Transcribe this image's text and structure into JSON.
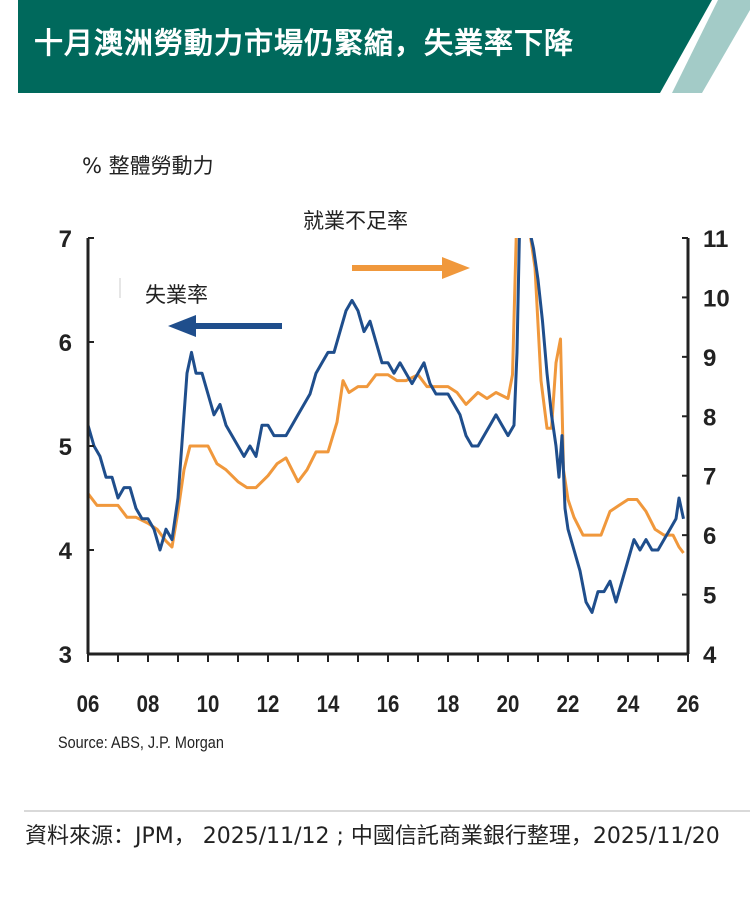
{
  "header": {
    "title": "十月澳洲勞動力市場仍緊縮，失業率下降",
    "color": "#00695c",
    "stripe_color": "#a3cbc7"
  },
  "chart_data": {
    "type": "line",
    "ylabel": "% 整體勞動力",
    "source_note": "Source: ABS,  J.P. Morgan",
    "xlim": [
      2006,
      2026
    ],
    "x_ticks": [
      "06",
      "08",
      "10",
      "12",
      "14",
      "16",
      "18",
      "20",
      "22",
      "24",
      "26"
    ],
    "y_left": {
      "range": [
        3,
        7
      ],
      "ticks": [
        "3",
        "4",
        "5",
        "6",
        "7"
      ]
    },
    "y_right": {
      "range": [
        4,
        11
      ],
      "ticks": [
        "4",
        "5",
        "6",
        "7",
        "8",
        "9",
        "10",
        "11"
      ]
    },
    "grid": false,
    "series": [
      {
        "name": "失業率",
        "axis": "left",
        "color": "#1f4e8c",
        "x": [
          2006.0,
          2006.2,
          2006.4,
          2006.6,
          2006.8,
          2007.0,
          2007.2,
          2007.4,
          2007.6,
          2007.8,
          2008.0,
          2008.2,
          2008.4,
          2008.6,
          2008.8,
          2009.0,
          2009.15,
          2009.3,
          2009.45,
          2009.6,
          2009.8,
          2010.0,
          2010.2,
          2010.4,
          2010.6,
          2010.8,
          2011.0,
          2011.2,
          2011.4,
          2011.6,
          2011.8,
          2012.0,
          2012.2,
          2012.4,
          2012.6,
          2012.8,
          2013.0,
          2013.2,
          2013.4,
          2013.6,
          2013.8,
          2014.0,
          2014.2,
          2014.4,
          2014.6,
          2014.8,
          2015.0,
          2015.2,
          2015.4,
          2015.6,
          2015.8,
          2016.0,
          2016.2,
          2016.4,
          2016.6,
          2016.8,
          2017.0,
          2017.2,
          2017.4,
          2017.6,
          2017.8,
          2018.0,
          2018.2,
          2018.4,
          2018.6,
          2018.8,
          2019.0,
          2019.2,
          2019.4,
          2019.6,
          2019.8,
          2020.0,
          2020.2,
          2020.3,
          2020.4,
          2020.55,
          2020.7,
          2020.85,
          2021.0,
          2021.15,
          2021.3,
          2021.45,
          2021.6,
          2021.7,
          2021.8,
          2021.9,
          2022.0,
          2022.2,
          2022.4,
          2022.6,
          2022.8,
          2023.0,
          2023.2,
          2023.4,
          2023.6,
          2023.8,
          2024.0,
          2024.2,
          2024.4,
          2024.6,
          2024.8,
          2025.0,
          2025.2,
          2025.4,
          2025.6,
          2025.7,
          2025.85
        ],
        "values": [
          5.2,
          5.0,
          4.9,
          4.7,
          4.7,
          4.5,
          4.6,
          4.6,
          4.4,
          4.3,
          4.3,
          4.2,
          4.0,
          4.2,
          4.1,
          4.5,
          5.1,
          5.7,
          5.9,
          5.7,
          5.7,
          5.5,
          5.3,
          5.4,
          5.2,
          5.1,
          5.0,
          4.9,
          5.0,
          4.9,
          5.2,
          5.2,
          5.1,
          5.1,
          5.1,
          5.2,
          5.3,
          5.4,
          5.5,
          5.7,
          5.8,
          5.9,
          5.9,
          6.1,
          6.3,
          6.4,
          6.3,
          6.1,
          6.2,
          6.0,
          5.8,
          5.8,
          5.7,
          5.8,
          5.7,
          5.6,
          5.7,
          5.8,
          5.6,
          5.5,
          5.5,
          5.5,
          5.4,
          5.3,
          5.1,
          5.0,
          5.0,
          5.1,
          5.2,
          5.3,
          5.2,
          5.1,
          5.2,
          5.9,
          7.3,
          7.5,
          7.1,
          6.9,
          6.6,
          6.2,
          5.7,
          5.3,
          5.0,
          4.7,
          5.1,
          4.4,
          4.2,
          4.0,
          3.8,
          3.5,
          3.4,
          3.6,
          3.6,
          3.7,
          3.5,
          3.7,
          3.9,
          4.1,
          4.0,
          4.1,
          4.0,
          4.0,
          4.1,
          4.2,
          4.3,
          4.5,
          4.3
        ]
      },
      {
        "name": "就業不足率",
        "axis": "right",
        "color": "#f0983c",
        "x": [
          2006.0,
          2006.3,
          2006.6,
          2007.0,
          2007.3,
          2007.6,
          2008.0,
          2008.3,
          2008.6,
          2008.8,
          2009.0,
          2009.2,
          2009.4,
          2009.7,
          2010.0,
          2010.3,
          2010.6,
          2011.0,
          2011.3,
          2011.6,
          2012.0,
          2012.3,
          2012.6,
          2013.0,
          2013.3,
          2013.6,
          2014.0,
          2014.3,
          2014.5,
          2014.7,
          2015.0,
          2015.3,
          2015.6,
          2016.0,
          2016.3,
          2016.6,
          2017.0,
          2017.3,
          2017.6,
          2018.0,
          2018.3,
          2018.6,
          2019.0,
          2019.3,
          2019.6,
          2020.0,
          2020.15,
          2020.3,
          2020.45,
          2020.7,
          2020.9,
          2021.1,
          2021.3,
          2021.45,
          2021.6,
          2021.75,
          2021.85,
          2022.0,
          2022.2,
          2022.5,
          2022.8,
          2023.1,
          2023.4,
          2023.7,
          2024.0,
          2024.3,
          2024.6,
          2024.9,
          2025.2,
          2025.5,
          2025.7,
          2025.85
        ],
        "values": [
          6.7,
          6.5,
          6.5,
          6.5,
          6.3,
          6.3,
          6.2,
          6.1,
          5.9,
          5.8,
          6.4,
          7.1,
          7.5,
          7.5,
          7.5,
          7.2,
          7.1,
          6.9,
          6.8,
          6.8,
          7.0,
          7.2,
          7.3,
          6.9,
          7.1,
          7.4,
          7.4,
          7.9,
          8.6,
          8.4,
          8.5,
          8.5,
          8.7,
          8.7,
          8.6,
          8.6,
          8.7,
          8.5,
          8.5,
          8.5,
          8.4,
          8.2,
          8.4,
          8.3,
          8.4,
          8.3,
          8.7,
          11.5,
          11.5,
          11.2,
          10.5,
          8.6,
          7.8,
          7.8,
          8.9,
          9.3,
          7.1,
          6.6,
          6.3,
          6.0,
          6.0,
          6.0,
          6.4,
          6.5,
          6.6,
          6.6,
          6.4,
          6.1,
          6.0,
          6.0,
          5.8,
          5.7
        ]
      }
    ],
    "annotations": [
      {
        "text": "失業率",
        "arrow": "left",
        "color": "#1f4e8c"
      },
      {
        "text": "就業不足率",
        "arrow": "right",
        "color": "#f0983c"
      }
    ]
  },
  "footer": {
    "text": "資料來源：JPM， 2025/11/12 ; 中國信託商業銀行整理，2025/11/20"
  }
}
